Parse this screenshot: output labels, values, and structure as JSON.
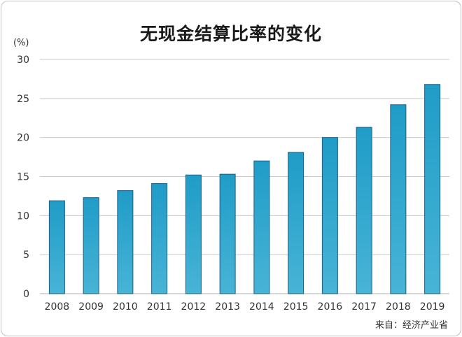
{
  "chart_data": {
    "type": "bar",
    "title": "无现金结算比率的变化",
    "ylabel": "(%)",
    "xlabel": "",
    "categories": [
      "2008",
      "2009",
      "2010",
      "2011",
      "2012",
      "2013",
      "2014",
      "2015",
      "2016",
      "2017",
      "2018",
      "2019"
    ],
    "values": [
      11.9,
      12.3,
      13.2,
      14.1,
      15.2,
      15.3,
      17.0,
      18.1,
      20.0,
      21.3,
      24.2,
      26.8
    ],
    "ylim": [
      0,
      30
    ],
    "yticks": [
      "0",
      "5",
      "10",
      "15",
      "20",
      "25",
      "30"
    ],
    "grid": true,
    "bar_color_top": "#1f9cc7",
    "bar_color_bottom": "#48b4d6",
    "bar_edge_color": "#1b5f86",
    "grid_color": "#c8ccce"
  },
  "source": "来自：经济产业省"
}
